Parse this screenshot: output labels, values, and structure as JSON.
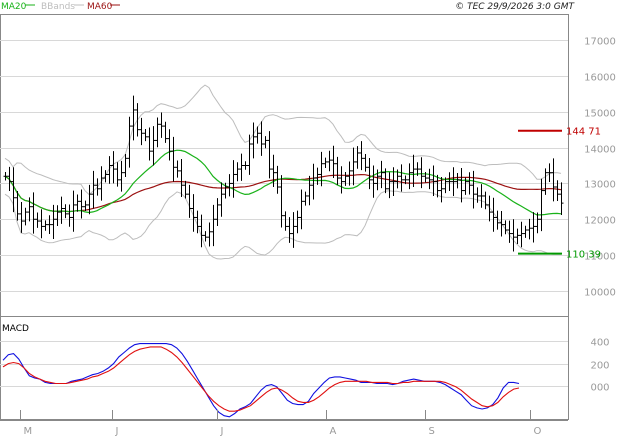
{
  "header": {
    "copyright": "© TEC 29/9/2026 3:0 GMT",
    "legend": [
      {
        "label": "MA20",
        "color": "#19b219"
      },
      {
        "label": "BBands",
        "color": "#bdbdbd"
      },
      {
        "label": "MA60",
        "color": "#9b1111"
      }
    ]
  },
  "macd_label": "MACD",
  "colors": {
    "price_bars": "#000000",
    "ma20": "#19b219",
    "ma60": "#9b1111",
    "bbands": "#bdbdbd",
    "macd_line": "#1010e0",
    "signal_line": "#e01010",
    "grid": "#d8d8d8",
    "resistance": "#c00000",
    "support": "#009900",
    "axis_text": "#9a9a9a"
  },
  "chart_data": [
    {
      "type": "ohlc",
      "panel": "price",
      "title": "",
      "x_month_labels": [
        "M",
        "J",
        "J",
        "A",
        "S",
        "O"
      ],
      "y_ticks": [
        10000,
        11000,
        12000,
        13000,
        14000,
        15000,
        16000,
        17000
      ],
      "y_tick_labels": [
        "10000",
        "11000",
        "12000",
        "13000",
        "14000",
        "15000",
        "16000",
        "17000"
      ],
      "ylim": [
        9300,
        17700
      ],
      "grid": true,
      "levels": [
        {
          "name": "resistance",
          "value": 14471,
          "label": "144 71"
        },
        {
          "name": "support",
          "value": 11039,
          "label": "110 39"
        }
      ],
      "close_series": [
        13200,
        13050,
        12600,
        12150,
        11950,
        12200,
        12350,
        12000,
        11950,
        11800,
        11850,
        11850,
        12000,
        12200,
        12300,
        12150,
        12050,
        12400,
        12500,
        12350,
        12400,
        12700,
        12950,
        12850,
        13150,
        13250,
        13500,
        13400,
        13100,
        13300,
        13700,
        14600,
        15050,
        14500,
        14400,
        14300,
        13900,
        14200,
        14650,
        14600,
        14250,
        13900,
        13450,
        13350,
        12950,
        12700,
        12300,
        12050,
        11800,
        11550,
        11500,
        11650,
        12000,
        12400,
        12700,
        12900,
        13000,
        13250,
        13400,
        13500,
        13500,
        14100,
        14300,
        14400,
        14100,
        14200,
        13400,
        13300,
        12900,
        12100,
        11800,
        11600,
        11800,
        12050,
        12500,
        12650,
        12950,
        13150,
        13250,
        13550,
        13600,
        13650,
        13550,
        13150,
        13050,
        13200,
        13350,
        13600,
        13850,
        13700,
        13450,
        13100,
        13000,
        13200,
        13300,
        12850,
        13050,
        13050,
        13200,
        13100,
        13100,
        13300,
        13400,
        13400,
        13200,
        13150,
        13100,
        13050,
        12800,
        12850,
        13050,
        13050,
        13050,
        13100,
        12800,
        13050,
        12950,
        12700,
        12650,
        12650,
        12400,
        12200,
        12050,
        11900,
        11850,
        11700,
        11600,
        11500,
        11550,
        11600,
        11700,
        11750,
        11800,
        12000,
        12800,
        13300,
        13300,
        12900,
        12700,
        12450
      ]
    },
    {
      "type": "line",
      "panel": "macd",
      "title": "MACD",
      "y_ticks": [
        0,
        200,
        400
      ],
      "y_tick_labels": [
        "000",
        "200",
        "400"
      ],
      "ylim": [
        -300,
        620
      ],
      "grid": true,
      "series": [
        {
          "name": "MACD",
          "values": [
            230,
            280,
            290,
            240,
            160,
            90,
            70,
            60,
            30,
            20,
            20,
            20,
            20,
            40,
            50,
            60,
            80,
            100,
            110,
            130,
            160,
            200,
            260,
            300,
            340,
            370,
            380,
            380,
            380,
            380,
            380,
            380,
            370,
            340,
            290,
            220,
            140,
            60,
            -20,
            -100,
            -180,
            -240,
            -270,
            -280,
            -250,
            -210,
            -190,
            -160,
            -100,
            -40,
            0,
            10,
            -10,
            -70,
            -130,
            -160,
            -170,
            -170,
            -140,
            -70,
            -20,
            30,
            70,
            80,
            80,
            70,
            60,
            50,
            30,
            30,
            30,
            20,
            20,
            20,
            10,
            20,
            40,
            50,
            60,
            50,
            40,
            40,
            40,
            30,
            10,
            -20,
            -50,
            -80,
            -130,
            -180,
            -200,
            -210,
            -200,
            -170,
            -110,
            -20,
            30,
            30,
            20
          ]
        },
        {
          "name": "Signal",
          "values": [
            170,
            200,
            210,
            200,
            160,
            110,
            80,
            60,
            40,
            30,
            20,
            20,
            20,
            30,
            40,
            50,
            60,
            80,
            90,
            110,
            130,
            160,
            200,
            240,
            280,
            310,
            330,
            340,
            350,
            350,
            350,
            330,
            300,
            260,
            210,
            150,
            90,
            30,
            -30,
            -90,
            -140,
            -180,
            -210,
            -230,
            -230,
            -220,
            -200,
            -180,
            -140,
            -100,
            -60,
            -30,
            -20,
            -40,
            -70,
            -110,
            -140,
            -150,
            -150,
            -130,
            -100,
            -60,
            -20,
            10,
            30,
            40,
            40,
            40,
            40,
            40,
            30,
            30,
            30,
            30,
            20,
            20,
            30,
            30,
            40,
            40,
            40,
            40,
            40,
            40,
            30,
            10,
            -10,
            -40,
            -80,
            -120,
            -150,
            -180,
            -190,
            -180,
            -150,
            -100,
            -60,
            -30,
            -20
          ]
        }
      ]
    }
  ]
}
